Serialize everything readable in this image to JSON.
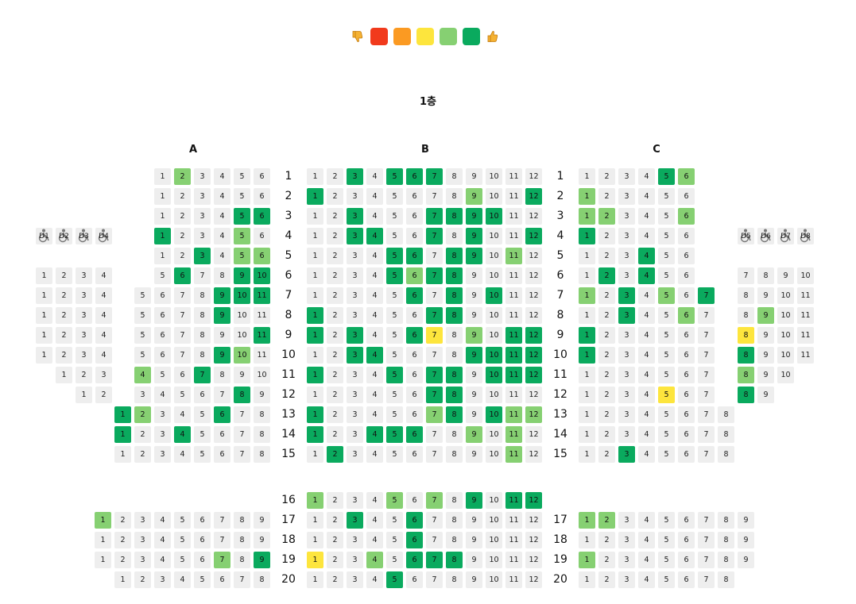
{
  "legend": [
    {
      "type": "icon",
      "name": "thumbs-down-icon"
    },
    {
      "type": "swatch",
      "name": "legend-bad",
      "color": "#f13a1c"
    },
    {
      "type": "swatch",
      "name": "legend-poor",
      "color": "#fb9a22"
    },
    {
      "type": "swatch",
      "name": "legend-average",
      "color": "#fde53d"
    },
    {
      "type": "swatch",
      "name": "legend-good",
      "color": "#86d072"
    },
    {
      "type": "swatch",
      "name": "legend-excellent",
      "color": "#0aaa5e"
    },
    {
      "type": "icon",
      "name": "thumbs-up-icon"
    }
  ],
  "colors": {
    "empty": "#eeeeee",
    "excellent": "#0aaa5e",
    "good": "#86d072",
    "average": "#fde53d",
    "poor": "#fb9a22",
    "bad": "#f13a1c"
  },
  "floor_title": "1층",
  "sections": [
    {
      "id": "A",
      "label": "A"
    },
    {
      "id": "B",
      "label": "B"
    },
    {
      "id": "C",
      "label": "C"
    }
  ],
  "row_labels": [
    "1",
    "2",
    "3",
    "4",
    "5",
    "6",
    "7",
    "8",
    "9",
    "10",
    "11",
    "12",
    "13",
    "14",
    "15",
    "16",
    "17",
    "18",
    "19",
    "20"
  ],
  "wheelchair": {
    "left": [
      "D1",
      "D2",
      "D3",
      "D4"
    ],
    "right": [
      "D5",
      "D6",
      "D7",
      "D8"
    ]
  },
  "rows": [
    {
      "row": 1,
      "A_out": [],
      "A_in": {
        "n": 6,
        "good": [
          2
        ],
        "excellent": []
      },
      "B": {
        "n": 12,
        "excellent": [
          3,
          5,
          6,
          7
        ],
        "good": [],
        "average": []
      },
      "C_in": {
        "n": 6,
        "excellent": [
          5
        ],
        "good": [
          6
        ]
      },
      "C_out": []
    },
    {
      "row": 2,
      "A_out": [],
      "A_in": {
        "n": 6,
        "good": [],
        "excellent": []
      },
      "B": {
        "n": 12,
        "excellent": [
          1,
          12
        ],
        "good": [
          9
        ],
        "average": []
      },
      "C_in": {
        "n": 6,
        "excellent": [],
        "good": [
          1
        ]
      },
      "C_out": []
    },
    {
      "row": 3,
      "A_out": [],
      "A_in": {
        "n": 6,
        "good": [],
        "excellent": [
          5,
          6
        ]
      },
      "B": {
        "n": 12,
        "excellent": [
          3,
          7,
          8,
          9,
          10
        ],
        "good": [],
        "average": []
      },
      "C_in": {
        "n": 6,
        "excellent": [],
        "good": [
          1,
          2,
          6
        ]
      },
      "C_out": []
    },
    {
      "row": 4,
      "A_out": [],
      "A_in": {
        "n": 6,
        "good": [
          5
        ],
        "excellent": [
          1
        ]
      },
      "B": {
        "n": 12,
        "excellent": [
          3,
          4,
          7,
          9,
          12
        ],
        "good": [],
        "average": []
      },
      "C_in": {
        "n": 6,
        "excellent": [
          1
        ],
        "good": []
      },
      "C_out": []
    },
    {
      "row": 5,
      "A_out": [],
      "A_in": {
        "n": 6,
        "good": [
          5,
          6
        ],
        "excellent": [
          3
        ]
      },
      "B": {
        "n": 12,
        "excellent": [
          5,
          6,
          8,
          9
        ],
        "good": [
          11
        ],
        "average": []
      },
      "C_in": {
        "n": 6,
        "excellent": [
          4
        ],
        "good": []
      },
      "C_out": []
    },
    {
      "row": 6,
      "A_out": [
        1,
        2,
        3,
        4
      ],
      "A_in": {
        "n": 10,
        "start": 5,
        "good": [],
        "excellent": [
          6,
          9,
          10
        ]
      },
      "B": {
        "n": 12,
        "excellent": [
          5,
          7,
          8
        ],
        "good": [
          6
        ],
        "average": []
      },
      "C_in": {
        "n": 6,
        "excellent": [
          2,
          4
        ],
        "good": []
      },
      "C_out": [
        7,
        8,
        9,
        10
      ]
    },
    {
      "row": 7,
      "A_out": [
        1,
        2,
        3,
        4
      ],
      "A_in": {
        "n": 11,
        "start": 5,
        "good": [],
        "excellent": [
          9,
          10,
          11
        ]
      },
      "B": {
        "n": 12,
        "excellent": [
          6,
          8,
          10
        ],
        "good": [],
        "average": []
      },
      "C_in": {
        "n": 7,
        "excellent": [
          3,
          7
        ],
        "good": [
          1,
          5
        ]
      },
      "C_out": [
        8,
        9,
        10,
        11
      ]
    },
    {
      "row": 8,
      "A_out": [
        1,
        2,
        3,
        4
      ],
      "A_in": {
        "n": 11,
        "start": 5,
        "good": [],
        "excellent": [
          9
        ]
      },
      "B": {
        "n": 12,
        "excellent": [
          1,
          7,
          8
        ],
        "good": [],
        "average": []
      },
      "C_in": {
        "n": 7,
        "excellent": [
          3
        ],
        "good": [
          6
        ]
      },
      "C_out": [
        8,
        9,
        10,
        11
      ],
      "C_out_good": [
        9
      ]
    },
    {
      "row": 9,
      "A_out": [
        1,
        2,
        3,
        4
      ],
      "A_in": {
        "n": 11,
        "start": 5,
        "good": [],
        "excellent": [
          11
        ]
      },
      "B": {
        "n": 12,
        "excellent": [
          1,
          3,
          6,
          11,
          12
        ],
        "good": [
          9
        ],
        "average": [
          7
        ]
      },
      "C_in": {
        "n": 7,
        "excellent": [
          1
        ],
        "good": []
      },
      "C_out": [
        8,
        9,
        10,
        11
      ],
      "C_out_average": [
        8
      ]
    },
    {
      "row": 10,
      "A_out": [
        1,
        2,
        3,
        4
      ],
      "A_in": {
        "n": 11,
        "start": 5,
        "good": [
          10
        ],
        "excellent": [
          9
        ]
      },
      "B": {
        "n": 12,
        "excellent": [
          3,
          4,
          9,
          10,
          11,
          12
        ],
        "good": [],
        "average": []
      },
      "C_in": {
        "n": 7,
        "excellent": [
          1
        ],
        "good": []
      },
      "C_out": [
        8,
        9,
        10,
        11
      ],
      "C_out_excellent": [
        8
      ]
    },
    {
      "row": 11,
      "A_out": [
        1,
        2,
        3
      ],
      "A_in": {
        "n": 10,
        "start": 4,
        "good": [
          4
        ],
        "excellent": [
          7
        ]
      },
      "B": {
        "n": 12,
        "excellent": [
          1,
          5,
          7,
          8,
          10,
          11,
          12
        ],
        "good": [],
        "average": []
      },
      "C_in": {
        "n": 7,
        "excellent": [],
        "good": []
      },
      "C_out": [
        8,
        9,
        10
      ],
      "C_out_good": [
        8
      ]
    },
    {
      "row": 12,
      "A_out": [
        1,
        2
      ],
      "A_in": {
        "n": 9,
        "start": 3,
        "good": [],
        "excellent": [
          8
        ]
      },
      "B": {
        "n": 12,
        "excellent": [
          7,
          8
        ],
        "good": [],
        "average": []
      },
      "C_in": {
        "n": 7,
        "excellent": [],
        "good": [],
        "average": [
          5
        ]
      },
      "C_out": [
        8,
        9
      ],
      "C_out_excellent": [
        8
      ]
    },
    {
      "row": 13,
      "A_full": {
        "n": 8,
        "excellent": [
          1,
          6
        ],
        "good": [
          2
        ]
      },
      "B": {
        "n": 12,
        "excellent": [
          1,
          8,
          10
        ],
        "good": [
          7,
          11,
          12
        ],
        "average": []
      },
      "C_full": {
        "n": 8,
        "excellent": [],
        "good": []
      }
    },
    {
      "row": 14,
      "A_full": {
        "n": 8,
        "excellent": [
          1,
          4
        ],
        "good": []
      },
      "B": {
        "n": 12,
        "excellent": [
          1,
          4,
          5,
          6
        ],
        "good": [
          9,
          11
        ],
        "average": []
      },
      "C_full": {
        "n": 8,
        "excellent": [],
        "good": []
      }
    },
    {
      "row": 15,
      "A_full": {
        "n": 8,
        "excellent": [],
        "good": []
      },
      "B": {
        "n": 12,
        "excellent": [
          2
        ],
        "good": [
          11
        ],
        "average": []
      },
      "C_full": {
        "n": 8,
        "excellent": [
          3
        ],
        "good": []
      }
    },
    {
      "row": 16,
      "B": {
        "n": 12,
        "excellent": [
          9,
          11,
          12
        ],
        "good": [
          1,
          5,
          7
        ],
        "average": []
      }
    },
    {
      "row": 17,
      "A_back": {
        "n": 9,
        "excellent": [],
        "good": [
          1
        ]
      },
      "B": {
        "n": 12,
        "excellent": [
          3,
          6
        ],
        "good": [],
        "average": []
      },
      "C_back": {
        "n": 9,
        "excellent": [],
        "good": [
          1,
          2
        ]
      }
    },
    {
      "row": 18,
      "A_back": {
        "n": 9,
        "excellent": [],
        "good": []
      },
      "B": {
        "n": 12,
        "excellent": [
          6
        ],
        "good": [],
        "average": []
      },
      "C_back": {
        "n": 9,
        "excellent": [],
        "good": []
      }
    },
    {
      "row": 19,
      "A_back": {
        "n": 9,
        "excellent": [
          9
        ],
        "good": [
          7
        ]
      },
      "B": {
        "n": 12,
        "excellent": [
          6,
          7,
          8
        ],
        "good": [
          4
        ],
        "average": [
          1
        ]
      },
      "C_back": {
        "n": 9,
        "excellent": [],
        "good": [
          1
        ]
      }
    },
    {
      "row": 20,
      "A_back": {
        "n": 8,
        "excellent": [],
        "good": []
      },
      "B": {
        "n": 12,
        "excellent": [
          5
        ],
        "good": [],
        "average": []
      },
      "C_back": {
        "n": 8,
        "excellent": [],
        "good": []
      }
    }
  ]
}
